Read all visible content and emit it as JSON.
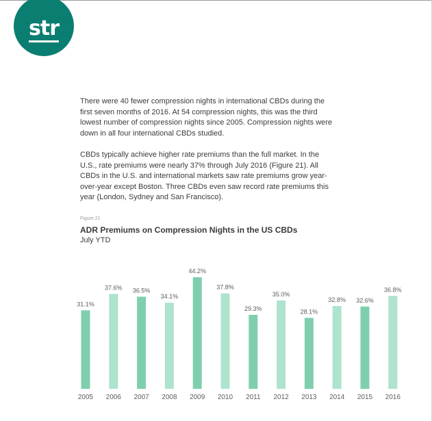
{
  "logo": {
    "text": "str"
  },
  "body": {
    "paragraph_1": "There were 40 fewer compression nights in international CBDs during the first seven months of 2016. At 54 compression nights, this was the third lowest number of compression nights since 2005. Compression nights were down in all four international CBDs studied.",
    "paragraph_2": "CBDs typically achieve higher rate premiums than the full market. In the U.S., rate premiums were nearly 37% through July 2016 (Figure 21). All CBDs in the U.S. and international markets saw rate premiums grow year-over-year except Boston. Three CBDs even saw record rate premiums this year (London, Sydney and San Francisco)."
  },
  "figure": {
    "label": "Figure 21",
    "title": "ADR Premiums on Compression Nights in the US CBDs",
    "subtitle": "July YTD"
  },
  "colors": {
    "brand": "#0b7e72",
    "bar_dark": "#7fcfae",
    "bar_light": "#aee3cd",
    "text": "#3a3a3a",
    "muted": "#5c5c5c"
  },
  "chart_data": {
    "type": "bar",
    "title": "ADR Premiums on Compression Nights in the US CBDs",
    "subtitle": "July YTD",
    "categories": [
      "2005",
      "2006",
      "2007",
      "2008",
      "2009",
      "2010",
      "2011",
      "2012",
      "2013",
      "2014",
      "2015",
      "2016"
    ],
    "values": [
      31.1,
      37.6,
      36.5,
      34.1,
      44.2,
      37.8,
      29.3,
      35.0,
      28.1,
      32.8,
      32.6,
      36.8
    ],
    "value_labels": [
      "31.1%",
      "37.6%",
      "36.5%",
      "34.1%",
      "44.2%",
      "37.8%",
      "29.3%",
      "35.0%",
      "28.1%",
      "32.8%",
      "32.6%",
      "36.8%"
    ],
    "bar_shades": [
      "dark",
      "light",
      "dark",
      "light",
      "dark",
      "light",
      "dark",
      "light",
      "dark",
      "light",
      "dark",
      "light"
    ],
    "xlabel": "",
    "ylabel": "",
    "ylim": [
      0,
      44.2
    ],
    "grid": false,
    "legend": "none"
  }
}
